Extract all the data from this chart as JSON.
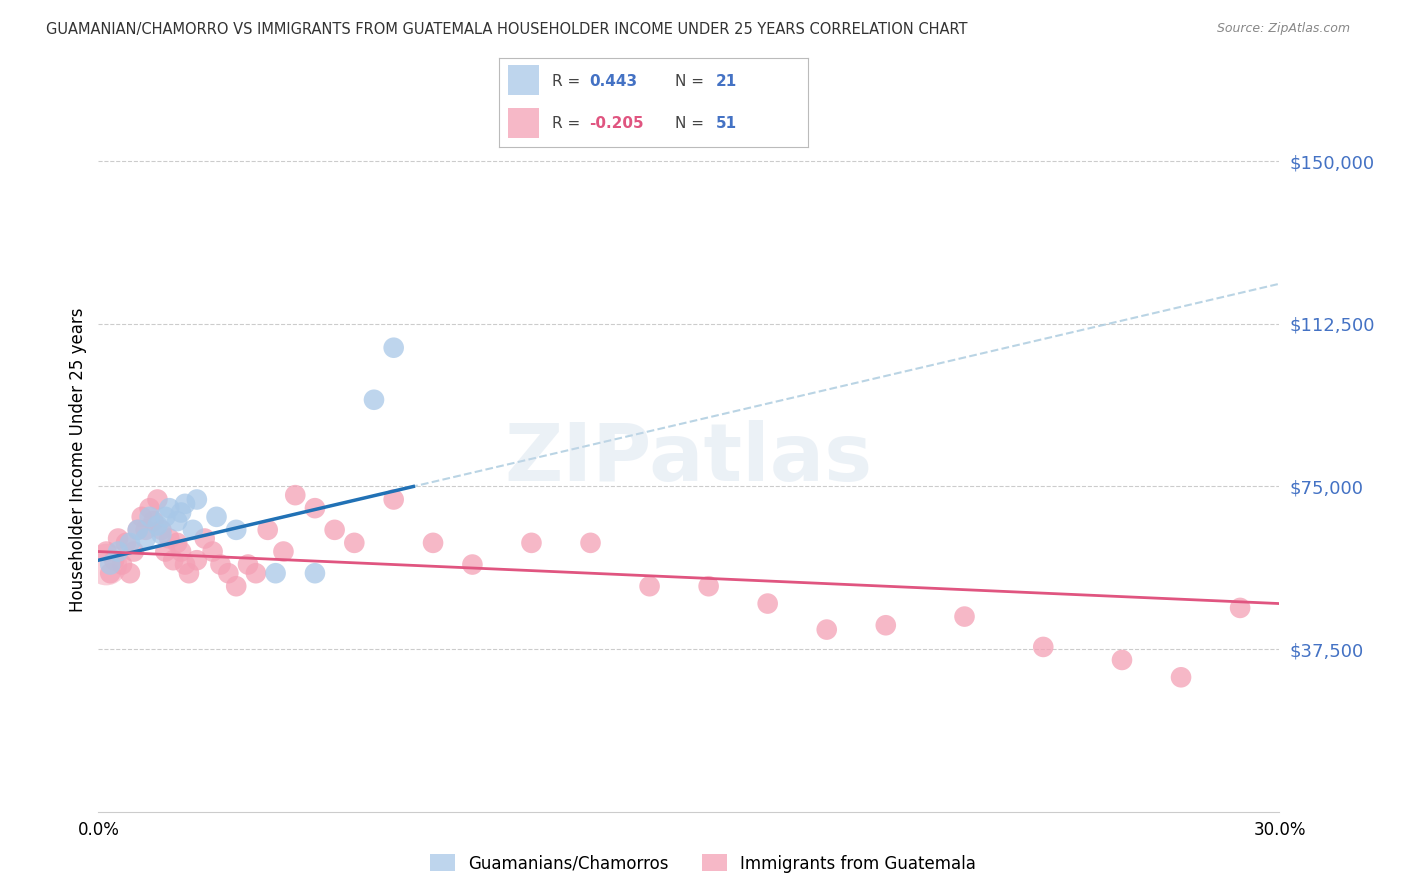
{
  "title": "GUAMANIAN/CHAMORRO VS IMMIGRANTS FROM GUATEMALA HOUSEHOLDER INCOME UNDER 25 YEARS CORRELATION CHART",
  "source": "Source: ZipAtlas.com",
  "ylabel": "Householder Income Under 25 years",
  "watermark": "ZIPatlas",
  "blue_R": 0.443,
  "blue_N": 21,
  "pink_R": -0.205,
  "pink_N": 51,
  "blue_color": "#a8c8e8",
  "blue_line_color": "#2171b5",
  "blue_dash_color": "#aecde0",
  "pink_color": "#f4a0b5",
  "pink_line_color": "#e05580",
  "blue_scatter_x": [
    0.3,
    0.5,
    0.8,
    1.0,
    1.2,
    1.3,
    1.5,
    1.6,
    1.7,
    1.8,
    2.0,
    2.1,
    2.2,
    2.4,
    2.5,
    3.0,
    3.5,
    4.5,
    5.5,
    7.0,
    7.5
  ],
  "blue_scatter_y": [
    57000,
    60000,
    62000,
    65000,
    63000,
    68000,
    66000,
    64000,
    68000,
    70000,
    67000,
    69000,
    71000,
    65000,
    72000,
    68000,
    65000,
    55000,
    55000,
    95000,
    107000
  ],
  "pink_scatter_x": [
    0.2,
    0.3,
    0.4,
    0.5,
    0.6,
    0.7,
    0.8,
    0.9,
    1.0,
    1.1,
    1.2,
    1.3,
    1.4,
    1.5,
    1.6,
    1.7,
    1.8,
    1.9,
    2.0,
    2.1,
    2.2,
    2.3,
    2.5,
    2.7,
    2.9,
    3.1,
    3.3,
    3.5,
    3.8,
    4.0,
    4.3,
    4.7,
    5.0,
    5.5,
    6.0,
    6.5,
    7.5,
    8.5,
    9.5,
    11.0,
    12.5,
    14.0,
    15.5,
    17.0,
    18.5,
    20.0,
    22.0,
    24.0,
    26.0,
    27.5,
    29.0
  ],
  "pink_scatter_y": [
    60000,
    55000,
    58000,
    63000,
    57000,
    62000,
    55000,
    60000,
    65000,
    68000,
    65000,
    70000,
    67000,
    72000,
    65000,
    60000,
    63000,
    58000,
    62000,
    60000,
    57000,
    55000,
    58000,
    63000,
    60000,
    57000,
    55000,
    52000,
    57000,
    55000,
    65000,
    60000,
    73000,
    70000,
    65000,
    62000,
    72000,
    62000,
    57000,
    62000,
    62000,
    52000,
    52000,
    48000,
    42000,
    43000,
    45000,
    38000,
    35000,
    31000,
    47000
  ],
  "xlim": [
    0,
    30
  ],
  "ylim": [
    0,
    162500
  ],
  "ytick_vals": [
    37500,
    75000,
    112500,
    150000
  ],
  "ytick_labels": [
    "$37,500",
    "$75,000",
    "$112,500",
    "$150,000"
  ],
  "background_color": "#ffffff",
  "grid_color": "#cccccc",
  "blue_line_x_start": 0.0,
  "blue_line_x_end": 8.0,
  "blue_dash_x_start": 0.0,
  "blue_dash_x_end": 30.0,
  "pink_line_x_start": 0.0,
  "pink_line_x_end": 30.0
}
